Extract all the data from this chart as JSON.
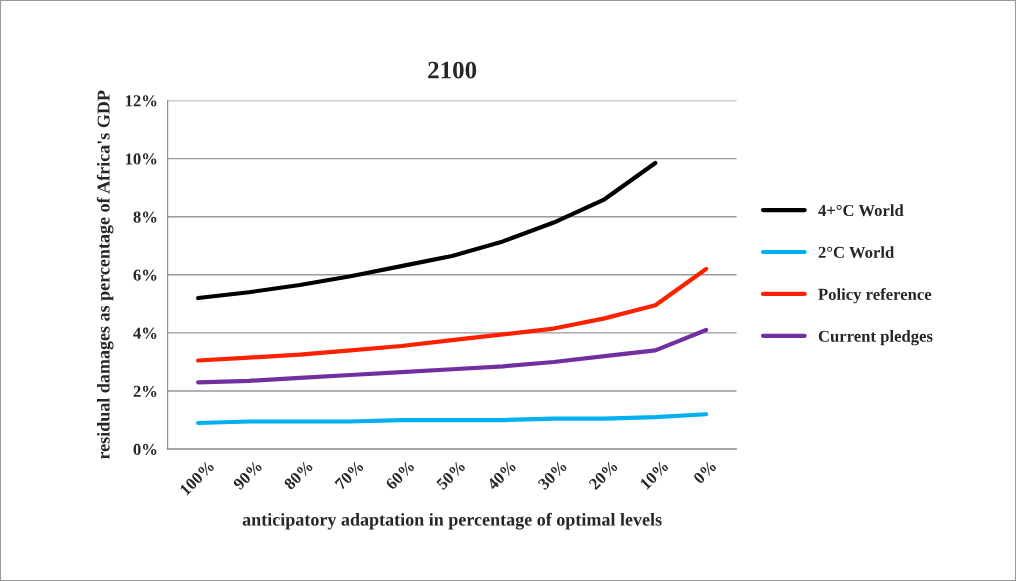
{
  "chart_data": {
    "type": "line",
    "title": "2100",
    "xlabel": "anticipatory adaptation in percentage of optimal levels",
    "ylabel": "residual damages as percentage of Africa's GDP",
    "categories": [
      "100%",
      "90%",
      "80%",
      "70%",
      "60%",
      "50%",
      "40%",
      "30%",
      "20%",
      "10%",
      "0%"
    ],
    "series": [
      {
        "name": "4+°C World",
        "color": "#000000",
        "values": [
          5.2,
          5.4,
          5.65,
          5.95,
          6.3,
          6.65,
          7.15,
          7.8,
          8.6,
          9.85,
          null
        ]
      },
      {
        "name": "2°C World",
        "color": "#00b0f0",
        "values": [
          0.9,
          0.95,
          0.95,
          0.95,
          1.0,
          1.0,
          1.0,
          1.05,
          1.05,
          1.1,
          1.2
        ]
      },
      {
        "name": "Policy reference",
        "color": "#ff2000",
        "values": [
          3.05,
          3.15,
          3.25,
          3.4,
          3.55,
          3.75,
          3.95,
          4.15,
          4.5,
          4.95,
          6.2
        ]
      },
      {
        "name": "Current pledges",
        "color": "#7030a0",
        "values": [
          2.3,
          2.35,
          2.45,
          2.55,
          2.65,
          2.75,
          2.85,
          3.0,
          3.2,
          3.4,
          4.1
        ]
      }
    ],
    "ylim": [
      0,
      12
    ],
    "yticks": [
      {
        "value": 0,
        "label": "0%"
      },
      {
        "value": 2,
        "label": "2%"
      },
      {
        "value": 4,
        "label": "4%"
      },
      {
        "value": 6,
        "label": "6%"
      },
      {
        "value": 8,
        "label": "8%"
      },
      {
        "value": 10,
        "label": "10%"
      },
      {
        "value": 12,
        "label": "12%"
      }
    ],
    "grid": "y",
    "legend": "right",
    "marker": "none",
    "line_style": "solid"
  }
}
